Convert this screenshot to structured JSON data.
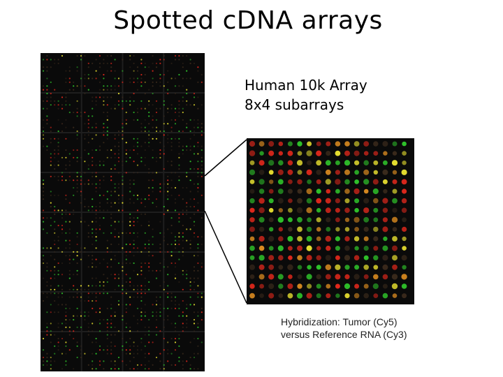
{
  "slide": {
    "title": "Spotted cDNA arrays"
  },
  "array_label": {
    "line1": "Human 10k Array",
    "line2": "8x4 subarrays"
  },
  "caption": {
    "line1": "Hybridization: Tumor (Cy5)",
    "line2": "versus Reference RNA (Cy3)"
  },
  "colors": {
    "background": "#ffffff",
    "array_background": "#0a0a0a",
    "spot_red": "#e0281c",
    "spot_green": "#2fc22a",
    "spot_yellow": "#e8e030",
    "spot_orange": "#d98a20",
    "spot_dim": "#3a2a1c",
    "connector": "#000000"
  },
  "subarray_grid": {
    "columns": 4,
    "rows": 8
  }
}
